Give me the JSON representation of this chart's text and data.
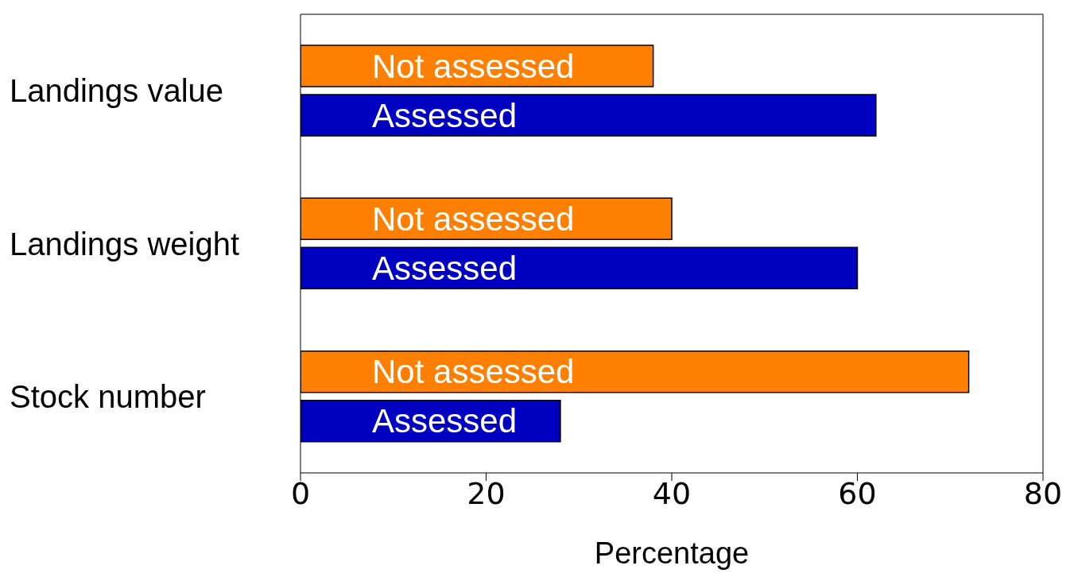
{
  "chart_data": {
    "type": "bar",
    "orientation": "horizontal",
    "xlabel": "Percentage",
    "categories": [
      "Landings value",
      "Landings weight",
      "Stock number"
    ],
    "series": [
      {
        "name": "Not assessed",
        "color": "#ff8000",
        "values": [
          38,
          40,
          72
        ]
      },
      {
        "name": "Assessed",
        "color": "#0000c0",
        "values": [
          62,
          60,
          28
        ]
      }
    ],
    "xlim": [
      0,
      80
    ],
    "xticks": [
      0,
      20,
      40,
      60,
      80
    ],
    "grid": false,
    "legend": false
  }
}
